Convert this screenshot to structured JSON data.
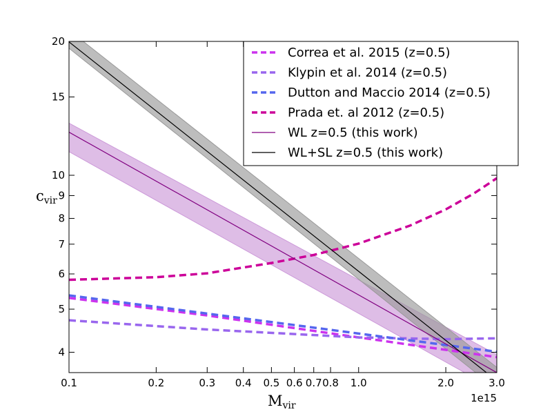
{
  "chart_data": {
    "type": "line",
    "x_scale": "log",
    "y_scale": "log",
    "xlim": [
      0.1,
      3.0
    ],
    "ylim": [
      3.6,
      20
    ],
    "x_multiplier_label": "1e15",
    "xlabel": {
      "main": "M",
      "sub": "vir"
    },
    "ylabel": {
      "main": "c",
      "sub": "vir"
    },
    "x_ticks": [
      {
        "v": 0.1,
        "label": "0.1"
      },
      {
        "v": 0.2,
        "label": "0.2"
      },
      {
        "v": 0.3,
        "label": "0.3"
      },
      {
        "v": 0.4,
        "label": "0.4"
      },
      {
        "v": 0.5,
        "label": "0.5"
      },
      {
        "v": 0.6,
        "label": "0.6"
      },
      {
        "v": 0.7,
        "label": "0.7"
      },
      {
        "v": 0.8,
        "label": "0.8"
      },
      {
        "v": 1.0,
        "label": "1.0"
      },
      {
        "v": 2.0,
        "label": "2.0"
      },
      {
        "v": 3.0,
        "label": "3.0"
      }
    ],
    "y_ticks": [
      {
        "v": 4,
        "label": "4"
      },
      {
        "v": 5,
        "label": "5"
      },
      {
        "v": 6,
        "label": "6"
      },
      {
        "v": 7,
        "label": "7"
      },
      {
        "v": 8,
        "label": "8"
      },
      {
        "v": 9,
        "label": "9"
      },
      {
        "v": 10,
        "label": "10"
      },
      {
        "v": 15,
        "label": "15"
      },
      {
        "v": 20,
        "label": "20"
      }
    ],
    "legend_position": "top-right",
    "grid": false,
    "series": [
      {
        "name": "Correa et al. 2015 (z=0.5)",
        "color": "#cc33ee",
        "style": "dashed",
        "x": [
          0.1,
          0.3,
          1.0,
          3.0
        ],
        "y": [
          5.3,
          4.84,
          4.32,
          3.9
        ]
      },
      {
        "name": "Klypin et al. 2014 (z=0.5)",
        "color": "#9966ee",
        "style": "dashed",
        "x": [
          0.1,
          0.3,
          1.0,
          2.0,
          3.0
        ],
        "y": [
          4.72,
          4.5,
          4.32,
          4.28,
          4.3
        ]
      },
      {
        "name": "Dutton and Maccio 2014 (z=0.5)",
        "color": "#5566ee",
        "style": "dashed",
        "x": [
          0.1,
          3.0
        ],
        "y": [
          5.37,
          4.01
        ]
      },
      {
        "name": "Prada et. al 2012 (z=0.5)",
        "color": "#cc0099",
        "style": "dashed",
        "x": [
          0.1,
          0.2,
          0.3,
          0.5,
          0.7,
          1.0,
          1.5,
          2.0,
          2.5,
          3.0
        ],
        "y": [
          5.82,
          5.9,
          6.02,
          6.35,
          6.62,
          7.02,
          7.7,
          8.38,
          9.1,
          9.85
        ]
      },
      {
        "name": "WL z=0.5 (this work)",
        "color": "#800080",
        "style": "solid",
        "x": [
          0.1,
          3.0
        ],
        "y": [
          12.5,
          3.6
        ],
        "band_lower": [
          11.3,
          3.28
        ],
        "band_upper": [
          13.1,
          3.95
        ],
        "band_color": "#cc99d9"
      },
      {
        "name": "WL+SL z=0.5 (this work)",
        "color": "#000000",
        "style": "solid",
        "x": [
          0.1,
          3.0
        ],
        "y": [
          19.95,
          3.45
        ],
        "band_lower": [
          19.3,
          3.3
        ],
        "band_upper": [
          21.2,
          3.7
        ],
        "band_color": "#999999"
      }
    ]
  }
}
